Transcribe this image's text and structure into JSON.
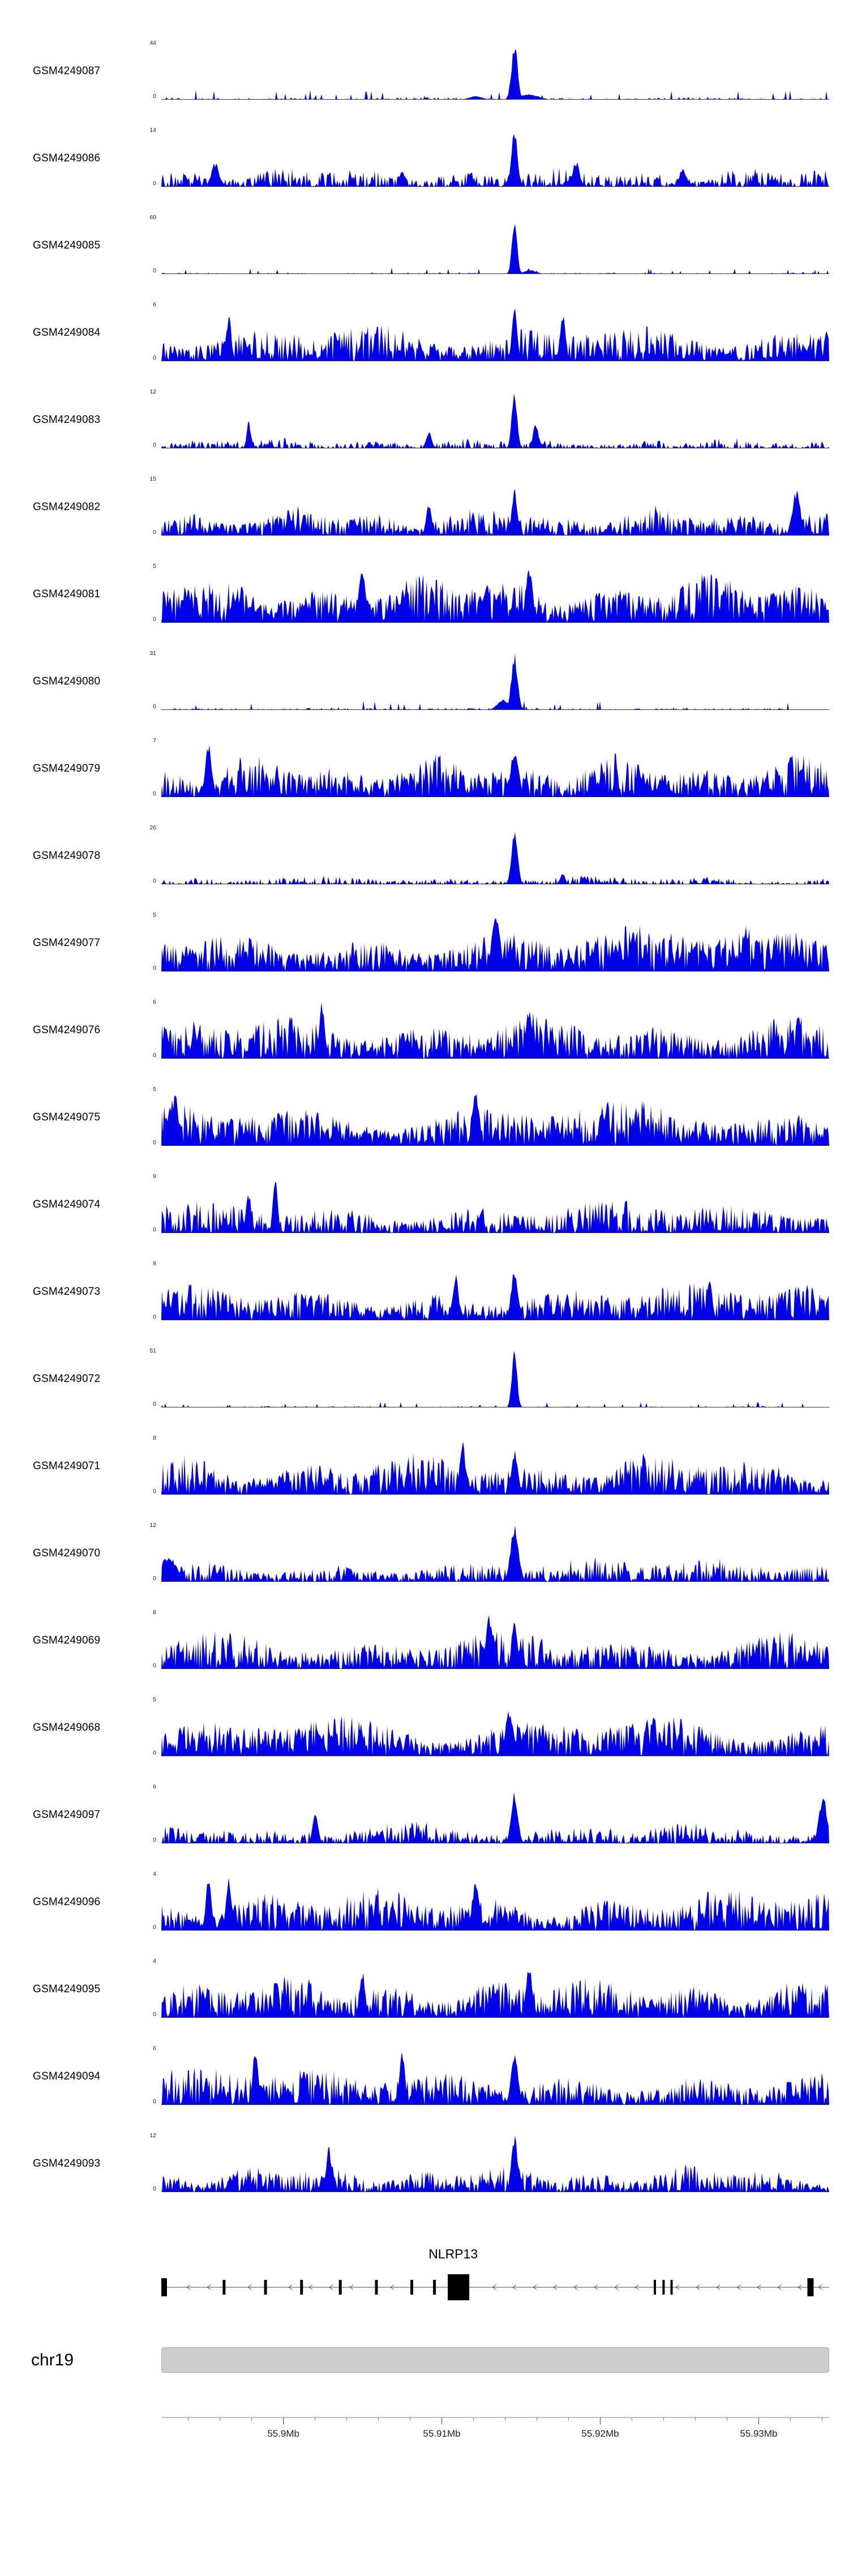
{
  "figure": {
    "background": "#ffffff",
    "accent_blue": "#0000EB",
    "baseline_color": "#333333"
  },
  "chart_data": {
    "type": "area",
    "title": "",
    "description": "Genome browser read-coverage histogram tracks for 25 GEO samples over the NLRP13 locus on chr19. Per-track profiles are stochastic approximations parameterized by background level, spikiness and peak positions (fractions of the plotted region) read from the figure.",
    "legend_position": "none",
    "grid": false,
    "region": {
      "chromosome": "chr19",
      "start": 55892300,
      "end": 55934450,
      "unit": "bp"
    },
    "axis": {
      "major_ticks": [
        {
          "pos": 55900000,
          "label": "55.9Mb"
        },
        {
          "pos": 55910000,
          "label": "55.91Mb"
        },
        {
          "pos": 55920000,
          "label": "55.92Mb"
        },
        {
          "pos": 55930000,
          "label": "55.93Mb"
        }
      ],
      "minor_tick_interval": 2000
    },
    "tracks": [
      {
        "name": "GSM4249087",
        "ymin": 0,
        "ymax": 44,
        "profile": "sparse",
        "seed": 101,
        "bg": 0.05,
        "spike": 2.8,
        "peaks": [
          {
            "c": 0.528,
            "w": 0.0045,
            "h": 1.0
          },
          {
            "c": 0.55,
            "w": 0.013,
            "h": 0.1
          },
          {
            "c": 0.47,
            "w": 0.01,
            "h": 0.06
          }
        ]
      },
      {
        "name": "GSM4249086",
        "ymin": 0,
        "ymax": 14,
        "profile": "medium",
        "seed": 102,
        "bg": 0.38,
        "spike": 1.6,
        "peaks": [
          {
            "c": 0.528,
            "w": 0.0045,
            "h": 1.0
          },
          {
            "c": 0.08,
            "w": 0.006,
            "h": 0.42
          },
          {
            "c": 0.62,
            "w": 0.005,
            "h": 0.45
          },
          {
            "c": 0.78,
            "w": 0.005,
            "h": 0.35
          },
          {
            "c": 0.36,
            "w": 0.004,
            "h": 0.3
          }
        ]
      },
      {
        "name": "GSM4249085",
        "ymin": 0,
        "ymax": 60,
        "profile": "sparse",
        "seed": 103,
        "bg": 0.035,
        "spike": 3.0,
        "peaks": [
          {
            "c": 0.528,
            "w": 0.0038,
            "h": 1.0
          },
          {
            "c": 0.551,
            "w": 0.009,
            "h": 0.07
          }
        ]
      },
      {
        "name": "GSM4249084",
        "ymin": 0,
        "ymax": 6,
        "profile": "dense",
        "seed": 104,
        "bg": 0.72,
        "spike": 1.0,
        "peaks": [
          {
            "c": 0.528,
            "w": 0.004,
            "h": 0.95
          },
          {
            "c": 0.6,
            "w": 0.004,
            "h": 0.85
          },
          {
            "c": 0.1,
            "w": 0.004,
            "h": 0.8
          }
        ]
      },
      {
        "name": "GSM4249083",
        "ymin": 0,
        "ymax": 12,
        "profile": "medium",
        "seed": 105,
        "bg": 0.2,
        "spike": 1.9,
        "peaks": [
          {
            "c": 0.528,
            "w": 0.004,
            "h": 1.0
          },
          {
            "c": 0.13,
            "w": 0.003,
            "h": 0.5
          },
          {
            "c": 0.56,
            "w": 0.004,
            "h": 0.45
          },
          {
            "c": 0.4,
            "w": 0.004,
            "h": 0.3
          }
        ]
      },
      {
        "name": "GSM4249082",
        "ymin": 0,
        "ymax": 15,
        "profile": "dense",
        "seed": 106,
        "bg": 0.55,
        "spike": 1.1,
        "peaks": [
          {
            "c": 0.528,
            "w": 0.004,
            "h": 0.85
          },
          {
            "c": 0.95,
            "w": 0.006,
            "h": 0.8
          },
          {
            "c": 0.4,
            "w": 0.004,
            "h": 0.6
          }
        ]
      },
      {
        "name": "GSM4249081",
        "ymin": 0,
        "ymax": 5,
        "profile": "dense",
        "seed": 107,
        "bg": 0.9,
        "spike": 0.8,
        "peaks": [
          {
            "c": 0.3,
            "w": 0.005,
            "h": 1.0
          },
          {
            "c": 0.55,
            "w": 0.005,
            "h": 1.0
          }
        ]
      },
      {
        "name": "GSM4249080",
        "ymin": 0,
        "ymax": 31,
        "profile": "sparse",
        "seed": 108,
        "bg": 0.05,
        "spike": 2.7,
        "peaks": [
          {
            "c": 0.528,
            "w": 0.0045,
            "h": 1.0
          },
          {
            "c": 0.512,
            "w": 0.009,
            "h": 0.18
          }
        ]
      },
      {
        "name": "GSM4249079",
        "ymin": 0,
        "ymax": 7,
        "profile": "dense",
        "seed": 109,
        "bg": 0.78,
        "spike": 1.0,
        "peaks": [
          {
            "c": 0.528,
            "w": 0.006,
            "h": 0.85
          },
          {
            "c": 0.07,
            "w": 0.005,
            "h": 0.9
          }
        ]
      },
      {
        "name": "GSM4249078",
        "ymin": 0,
        "ymax": 26,
        "profile": "medium",
        "seed": 110,
        "bg": 0.16,
        "spike": 2.0,
        "peaks": [
          {
            "c": 0.528,
            "w": 0.0045,
            "h": 1.0
          },
          {
            "c": 0.6,
            "w": 0.004,
            "h": 0.18
          }
        ]
      },
      {
        "name": "GSM4249077",
        "ymin": 0,
        "ymax": 5,
        "profile": "dense",
        "seed": 111,
        "bg": 0.88,
        "spike": 0.85,
        "peaks": [
          {
            "c": 0.5,
            "w": 0.006,
            "h": 1.0
          }
        ]
      },
      {
        "name": "GSM4249076",
        "ymin": 0,
        "ymax": 6,
        "profile": "dense",
        "seed": 112,
        "bg": 0.82,
        "spike": 0.95,
        "peaks": [
          {
            "c": 0.24,
            "w": 0.004,
            "h": 1.0
          },
          {
            "c": 0.55,
            "w": 0.005,
            "h": 0.9
          }
        ]
      },
      {
        "name": "GSM4249075",
        "ymin": 0,
        "ymax": 5,
        "profile": "dense",
        "seed": 113,
        "bg": 0.85,
        "spike": 0.9,
        "peaks": [
          {
            "c": 0.02,
            "w": 0.004,
            "h": 1.0
          },
          {
            "c": 0.47,
            "w": 0.005,
            "h": 0.95
          }
        ]
      },
      {
        "name": "GSM4249074",
        "ymin": 0,
        "ymax": 9,
        "profile": "dense",
        "seed": 114,
        "bg": 0.62,
        "spike": 1.15,
        "peaks": [
          {
            "c": 0.17,
            "w": 0.0035,
            "h": 1.0
          },
          {
            "c": 0.13,
            "w": 0.004,
            "h": 0.7
          }
        ]
      },
      {
        "name": "GSM4249073",
        "ymin": 0,
        "ymax": 8,
        "profile": "dense",
        "seed": 115,
        "bg": 0.68,
        "spike": 1.05,
        "peaks": [
          {
            "c": 0.528,
            "w": 0.005,
            "h": 0.95
          },
          {
            "c": 0.44,
            "w": 0.004,
            "h": 0.85
          },
          {
            "c": 0.82,
            "w": 0.004,
            "h": 0.8
          }
        ]
      },
      {
        "name": "GSM4249072",
        "ymin": 0,
        "ymax": 51,
        "profile": "sparse",
        "seed": 116,
        "bg": 0.03,
        "spike": 3.0,
        "peaks": [
          {
            "c": 0.528,
            "w": 0.0038,
            "h": 1.0
          }
        ]
      },
      {
        "name": "GSM4249071",
        "ymin": 0,
        "ymax": 8,
        "profile": "dense",
        "seed": 117,
        "bg": 0.78,
        "spike": 1.0,
        "peaks": [
          {
            "c": 0.45,
            "w": 0.004,
            "h": 1.0
          },
          {
            "c": 0.528,
            "w": 0.005,
            "h": 0.8
          }
        ]
      },
      {
        "name": "GSM4249070",
        "ymin": 0,
        "ymax": 12,
        "profile": "medium",
        "seed": 118,
        "bg": 0.45,
        "spike": 1.35,
        "peaks": [
          {
            "c": 0.528,
            "w": 0.006,
            "h": 1.0
          },
          {
            "c": 0.01,
            "w": 0.012,
            "h": 0.45
          }
        ]
      },
      {
        "name": "GSM4249069",
        "ymin": 0,
        "ymax": 8,
        "profile": "dense",
        "seed": 119,
        "bg": 0.72,
        "spike": 1.05,
        "peaks": [
          {
            "c": 0.49,
            "w": 0.005,
            "h": 0.95
          },
          {
            "c": 0.528,
            "w": 0.004,
            "h": 0.9
          }
        ]
      },
      {
        "name": "GSM4249068",
        "ymin": 0,
        "ymax": 5,
        "profile": "dense",
        "seed": 120,
        "bg": 0.78,
        "spike": 0.9,
        "peaks": [
          {
            "c": 0.52,
            "w": 0.006,
            "h": 0.8
          }
        ]
      },
      {
        "name": "GSM4249097",
        "ymin": 0,
        "ymax": 6,
        "profile": "medium",
        "seed": 121,
        "bg": 0.4,
        "spike": 1.5,
        "peaks": [
          {
            "c": 0.528,
            "w": 0.005,
            "h": 0.9
          },
          {
            "c": 0.23,
            "w": 0.004,
            "h": 0.6
          },
          {
            "c": 0.99,
            "w": 0.006,
            "h": 0.85
          }
        ]
      },
      {
        "name": "GSM4249096",
        "ymin": 0,
        "ymax": 4,
        "profile": "dense",
        "seed": 122,
        "bg": 0.78,
        "spike": 1.0,
        "peaks": [
          {
            "c": 0.07,
            "w": 0.004,
            "h": 1.0
          },
          {
            "c": 0.1,
            "w": 0.004,
            "h": 0.95
          },
          {
            "c": 0.47,
            "w": 0.005,
            "h": 0.85
          }
        ]
      },
      {
        "name": "GSM4249095",
        "ymin": 0,
        "ymax": 4,
        "profile": "dense",
        "seed": 123,
        "bg": 0.8,
        "spike": 0.95,
        "peaks": [
          {
            "c": 0.55,
            "w": 0.005,
            "h": 0.9
          },
          {
            "c": 0.3,
            "w": 0.004,
            "h": 0.85
          }
        ]
      },
      {
        "name": "GSM4249094",
        "ymin": 0,
        "ymax": 6,
        "profile": "dense",
        "seed": 124,
        "bg": 0.72,
        "spike": 1.0,
        "peaks": [
          {
            "c": 0.14,
            "w": 0.004,
            "h": 1.0
          },
          {
            "c": 0.36,
            "w": 0.004,
            "h": 1.0
          },
          {
            "c": 0.528,
            "w": 0.005,
            "h": 0.95
          }
        ]
      },
      {
        "name": "GSM4249093",
        "ymin": 0,
        "ymax": 12,
        "profile": "medium",
        "seed": 125,
        "bg": 0.52,
        "spike": 1.2,
        "peaks": [
          {
            "c": 0.528,
            "w": 0.0045,
            "h": 1.0
          },
          {
            "c": 0.25,
            "w": 0.004,
            "h": 0.8
          }
        ]
      }
    ],
    "gene_track": {
      "gene": "NLRP13",
      "strand": "-",
      "label_center": 0.437,
      "exons": [
        {
          "x": 0.004,
          "w": 10,
          "h": 32
        },
        {
          "x": 0.094,
          "w": 5,
          "h": 26
        },
        {
          "x": 0.156,
          "w": 5,
          "h": 26
        },
        {
          "x": 0.21,
          "w": 5,
          "h": 26
        },
        {
          "x": 0.268,
          "w": 5,
          "h": 26
        },
        {
          "x": 0.322,
          "w": 5,
          "h": 26
        },
        {
          "x": 0.375,
          "w": 5,
          "h": 26
        },
        {
          "x": 0.409,
          "w": 5,
          "h": 26
        },
        {
          "x": 0.445,
          "w": 38,
          "h": 46
        },
        {
          "x": 0.739,
          "w": 4,
          "h": 26
        },
        {
          "x": 0.752,
          "w": 4,
          "h": 26
        },
        {
          "x": 0.764,
          "w": 4,
          "h": 26
        },
        {
          "x": 0.972,
          "w": 11,
          "h": 32
        }
      ]
    },
    "ideogram": {
      "chromosome_label": "chr19"
    }
  }
}
